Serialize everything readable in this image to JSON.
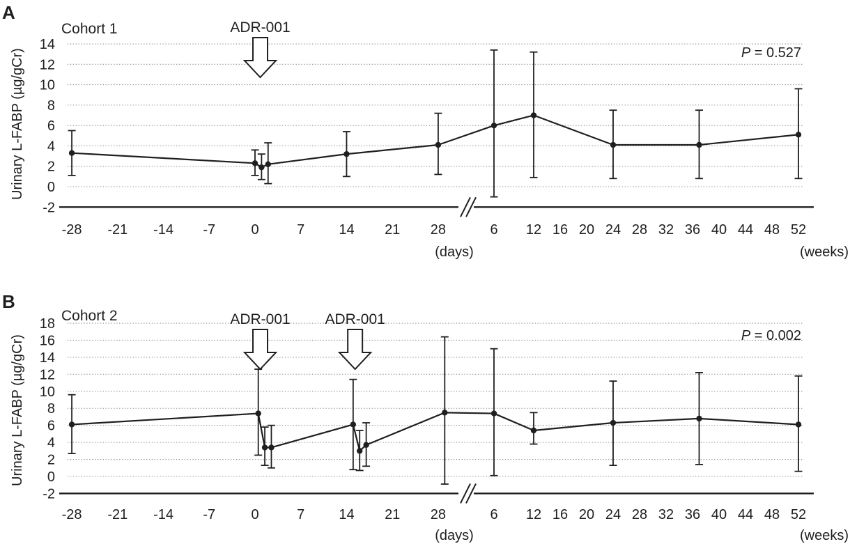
{
  "figure": {
    "colors": {
      "ink": "#1f1f1f",
      "grid": "#8c8c8c",
      "background": "#ffffff"
    }
  },
  "chart_data": [
    {
      "type": "line",
      "panel_letter": "A",
      "title": "Cohort 1",
      "p_value": {
        "italic": "P",
        "rest": " = 0.527"
      },
      "ylabel": "Urinary L-FABP (µg/gCr)",
      "ylim": [
        -2,
        14
      ],
      "ytick_step": 2,
      "grid": "dotted-horizontal",
      "legend_position": "none",
      "x_axis": {
        "broken_axis": true,
        "days_ticks": [
          -28,
          -21,
          -14,
          -7,
          0,
          7,
          14,
          21,
          28
        ],
        "weeks_ticks": [
          6,
          12,
          16,
          20,
          24,
          28,
          32,
          36,
          40,
          44,
          48,
          52
        ],
        "days_unit": "(days)",
        "weeks_unit": "(weeks)"
      },
      "annotations": [
        {
          "label": "ADR-001",
          "unit": "days",
          "t": 0.8
        }
      ],
      "series": [
        {
          "name": "Cohort 1 mean with error bars",
          "marker": "filled-circle",
          "points": [
            {
              "t": -28,
              "unit": "days",
              "y": 3.3,
              "lo": 1.1,
              "hi": 5.5
            },
            {
              "t": 0,
              "unit": "days",
              "y": 2.3,
              "lo": 1.1,
              "hi": 3.6
            },
            {
              "t": 1,
              "unit": "days",
              "y": 1.9,
              "lo": 0.7,
              "hi": 3.2
            },
            {
              "t": 2,
              "unit": "days",
              "y": 2.2,
              "lo": 0.3,
              "hi": 4.3
            },
            {
              "t": 14,
              "unit": "days",
              "y": 3.2,
              "lo": 1.0,
              "hi": 5.4
            },
            {
              "t": 28,
              "unit": "days",
              "y": 4.1,
              "lo": 1.2,
              "hi": 7.2
            },
            {
              "t": 6,
              "unit": "weeks",
              "y": 6.0,
              "lo": -1.0,
              "hi": 13.4
            },
            {
              "t": 12,
              "unit": "weeks",
              "y": 7.0,
              "lo": 0.9,
              "hi": 13.2
            },
            {
              "t": 24,
              "unit": "weeks",
              "y": 4.1,
              "lo": 0.8,
              "hi": 7.5
            },
            {
              "t": 37,
              "unit": "weeks",
              "y": 4.1,
              "lo": 0.8,
              "hi": 7.5
            },
            {
              "t": 52,
              "unit": "weeks",
              "y": 5.1,
              "lo": 0.8,
              "hi": 9.6
            }
          ]
        }
      ]
    },
    {
      "type": "line",
      "panel_letter": "B",
      "title": "Cohort 2",
      "p_value": {
        "italic": "P",
        "rest": " = 0.002"
      },
      "ylabel": "Urinary L-FABP (µg/gCr)",
      "ylim": [
        -2,
        18
      ],
      "ytick_step": 2,
      "grid": "dotted-horizontal",
      "legend_position": "none",
      "x_axis": {
        "broken_axis": true,
        "days_ticks": [
          -28,
          -21,
          -14,
          -7,
          0,
          7,
          14,
          21,
          28
        ],
        "weeks_ticks": [
          6,
          12,
          16,
          20,
          24,
          28,
          32,
          36,
          40,
          44,
          48,
          52
        ],
        "days_unit": "(days)",
        "weeks_unit": "(weeks)"
      },
      "annotations": [
        {
          "label": "ADR-001",
          "unit": "days",
          "t": 0.8
        },
        {
          "label": "ADR-001",
          "unit": "days",
          "t": 15.3
        }
      ],
      "series": [
        {
          "name": "Cohort 2 mean with error bars",
          "marker": "filled-circle",
          "points": [
            {
              "t": -28,
              "unit": "days",
              "y": 6.1,
              "lo": 2.7,
              "hi": 9.6
            },
            {
              "t": 0.5,
              "unit": "days",
              "y": 7.4,
              "lo": 2.5,
              "hi": 12.6
            },
            {
              "t": 1.5,
              "unit": "days",
              "y": 3.4,
              "lo": 1.3,
              "hi": 5.8
            },
            {
              "t": 2.5,
              "unit": "days",
              "y": 3.4,
              "lo": 1.0,
              "hi": 6.0
            },
            {
              "t": 15,
              "unit": "days",
              "y": 6.1,
              "lo": 0.8,
              "hi": 11.4
            },
            {
              "t": 16,
              "unit": "days",
              "y": 3.0,
              "lo": 0.7,
              "hi": 5.4
            },
            {
              "t": 17,
              "unit": "days",
              "y": 3.7,
              "lo": 1.2,
              "hi": 6.3
            },
            {
              "t": 29,
              "unit": "days",
              "y": 7.5,
              "lo": -0.9,
              "hi": 16.4
            },
            {
              "t": 6,
              "unit": "weeks",
              "y": 7.4,
              "lo": 0.1,
              "hi": 15.0
            },
            {
              "t": 12,
              "unit": "weeks",
              "y": 5.4,
              "lo": 3.8,
              "hi": 7.5
            },
            {
              "t": 24,
              "unit": "weeks",
              "y": 6.3,
              "lo": 1.3,
              "hi": 11.2
            },
            {
              "t": 37,
              "unit": "weeks",
              "y": 6.8,
              "lo": 1.4,
              "hi": 12.2
            },
            {
              "t": 52,
              "unit": "weeks",
              "y": 6.1,
              "lo": 0.6,
              "hi": 11.8
            }
          ]
        }
      ]
    }
  ]
}
